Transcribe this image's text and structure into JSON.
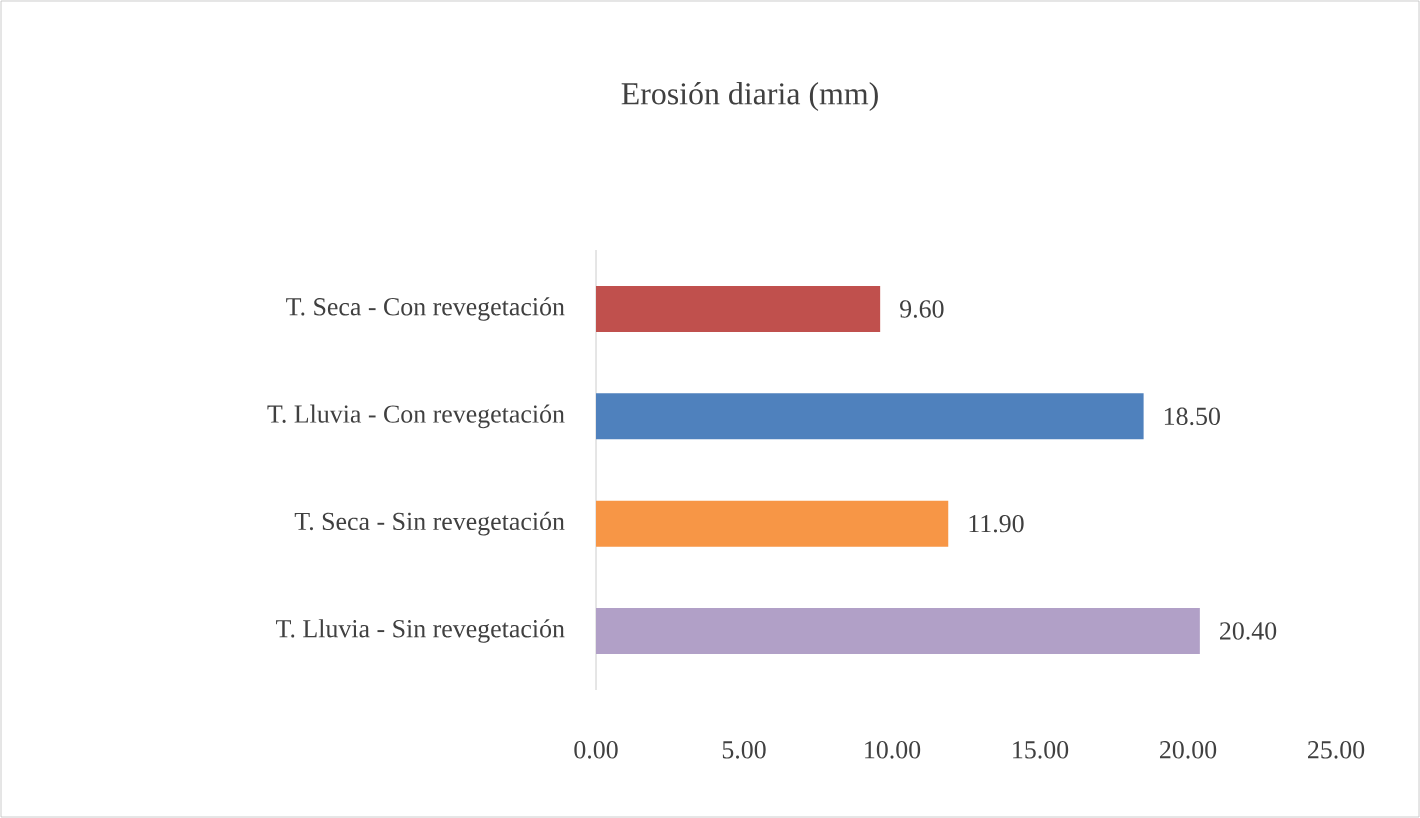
{
  "chart_data": {
    "type": "bar",
    "orientation": "horizontal",
    "title": "Erosión diaria (mm)",
    "categories": [
      "T. Seca - Con revegetación",
      "T. Lluvia - Con revegetación",
      "T. Seca - Sin revegetación",
      "T. Lluvia - Sin revegetación"
    ],
    "values": [
      9.6,
      18.5,
      11.9,
      20.4
    ],
    "colors": [
      "#c0504d",
      "#4f81bd",
      "#f79646",
      "#b1a0c7"
    ],
    "value_labels": [
      "9.60",
      "18.50",
      "11.90",
      "20.40"
    ],
    "xlim": [
      0,
      25
    ],
    "xticks": [
      {
        "value": 0,
        "label": "0.00"
      },
      {
        "value": 5,
        "label": "5.00"
      },
      {
        "value": 10,
        "label": "10.00"
      },
      {
        "value": 15,
        "label": "15.00"
      },
      {
        "value": 20,
        "label": "20.00"
      },
      {
        "value": 25,
        "label": "25.00"
      }
    ]
  }
}
